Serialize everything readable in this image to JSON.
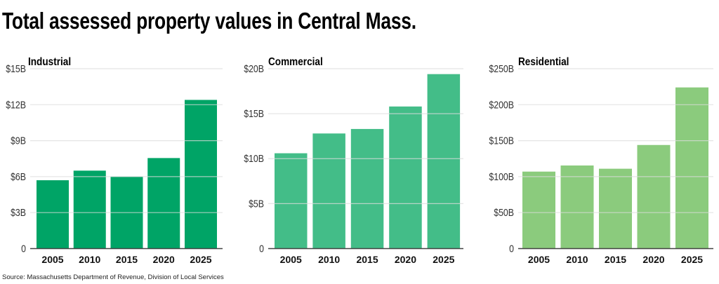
{
  "title": "Total assessed property values in Central Mass.",
  "source": "Source: Massachusetts Department of Revenue, Division of Local Services",
  "chart_data": [
    {
      "type": "bar",
      "title": "Industrial",
      "xlabel": "",
      "ylabel": "",
      "categories": [
        "2005",
        "2010",
        "2015",
        "2020",
        "2025"
      ],
      "values": [
        5.7,
        6.5,
        6.0,
        7.55,
        12.4
      ],
      "unit": "billion USD",
      "ylim": [
        0,
        15
      ],
      "yticks": [
        0,
        3,
        6,
        9,
        12,
        15
      ],
      "ytick_labels": [
        "0",
        "$3B",
        "$6B",
        "$9B",
        "$12B",
        "$15B"
      ],
      "color": "#00a466",
      "grid": true,
      "legend": "none"
    },
    {
      "type": "bar",
      "title": "Commercial",
      "xlabel": "",
      "ylabel": "",
      "categories": [
        "2005",
        "2010",
        "2015",
        "2020",
        "2025"
      ],
      "values": [
        10.6,
        12.8,
        13.3,
        15.8,
        19.4
      ],
      "unit": "billion USD",
      "ylim": [
        0,
        20
      ],
      "yticks": [
        0,
        5,
        10,
        15,
        20
      ],
      "ytick_labels": [
        "0",
        "$5B",
        "$10B",
        "$15B",
        "$20B"
      ],
      "color": "#43bd88",
      "grid": true,
      "legend": "none"
    },
    {
      "type": "bar",
      "title": "Residential",
      "xlabel": "",
      "ylabel": "",
      "categories": [
        "2005",
        "2010",
        "2015",
        "2020",
        "2025"
      ],
      "values": [
        107,
        115.5,
        111,
        144,
        224
      ],
      "unit": "billion USD",
      "ylim": [
        0,
        250
      ],
      "yticks": [
        0,
        50,
        100,
        150,
        200,
        250
      ],
      "ytick_labels": [
        "0",
        "$50B",
        "$100B",
        "$150B",
        "$200B",
        "$250B"
      ],
      "color": "#8bcb7d",
      "grid": true,
      "legend": "none"
    }
  ]
}
